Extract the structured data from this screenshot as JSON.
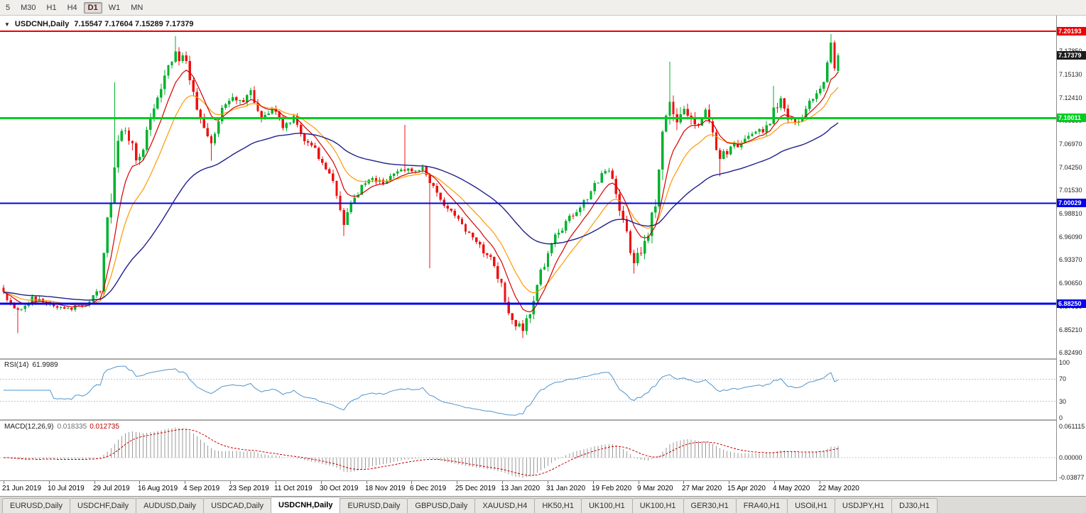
{
  "toolbar": {
    "timeframes": [
      {
        "label": "5",
        "active": false
      },
      {
        "label": "M30",
        "active": false
      },
      {
        "label": "H1",
        "active": false
      },
      {
        "label": "H4",
        "active": false
      },
      {
        "label": "D1",
        "active": true
      },
      {
        "label": "W1",
        "active": false
      },
      {
        "label": "MN",
        "active": false
      }
    ]
  },
  "chart": {
    "marker_icon": "▼",
    "title": "USDCNH,Daily",
    "ohlc": "7.15547 7.17604 7.15289 7.17379",
    "current_price": "7.17379",
    "axis_ticks": [
      "7.17850",
      "7.15130",
      "7.12410",
      "7.09690",
      "7.06970",
      "7.04250",
      "7.01530",
      "6.98810",
      "6.96090",
      "6.93370",
      "6.90650",
      "6.87930",
      "6.85210",
      "6.82490"
    ],
    "hlines": [
      {
        "price": "7.20193",
        "value": 7.20193,
        "color": "#EE0000",
        "width": 2
      },
      {
        "price": "7.10011",
        "value": 7.10011,
        "color": "#00CC22",
        "width": 3
      },
      {
        "price": "7.00029",
        "value": 7.00029,
        "color": "#0000EE",
        "width": 2
      },
      {
        "price": "6.88250",
        "value": 6.8825,
        "color": "#0000EE",
        "width": 3
      }
    ]
  },
  "rsi": {
    "label": "RSI(14)",
    "value": "61.9989",
    "levels": [
      "100",
      "70",
      "30",
      "0"
    ]
  },
  "macd": {
    "label": "MACD(12,26,9)",
    "value_main": "0.018335",
    "value_signal": "0.012735",
    "axis": [
      "0.061115",
      "0.00000",
      "-0.03877"
    ]
  },
  "dates": [
    "21 Jun 2019",
    "10 Jul 2019",
    "29 Jul 2019",
    "16 Aug 2019",
    "4 Sep 2019",
    "23 Sep 2019",
    "11 Oct 2019",
    "30 Oct 2019",
    "18 Nov 2019",
    "6 Dec 2019",
    "25 Dec 2019",
    "13 Jan 2020",
    "31 Jan 2020",
    "19 Feb 2020",
    "9 Mar 2020",
    "27 Mar 2020",
    "15 Apr 2020",
    "4 May 2020",
    "22 May 2020"
  ],
  "tabs": {
    "active_index": 4,
    "items": [
      "EURUSD,Daily",
      "USDCHF,Daily",
      "AUDUSD,Daily",
      "USDCAD,Daily",
      "USDCNH,Daily",
      "EURUSD,Daily",
      "GBPUSD,Daily",
      "XAUUSD,H4",
      "HK50,H1",
      "UK100,H1",
      "UK100,H1",
      "GER30,H1",
      "FRA40,H1",
      "USOil,H1",
      "USDJPY,H1",
      "DJ30,H1"
    ]
  },
  "colors": {
    "candle_up": "#00B22D",
    "candle_down": "#EE1111",
    "rsi_line": "#4F94CD",
    "macd_hist": "#9A9A9A",
    "macd_signal": "#CC0000",
    "current_badge": "#1C1C1C"
  },
  "chart_data": {
    "type": "candlestick",
    "symbol": "USDCNH",
    "timeframe": "Daily",
    "candle_count": 234,
    "price_axis_range": [
      6.8249,
      7.2202
    ],
    "last_candle": {
      "o": 7.15547,
      "h": 7.17604,
      "l": 7.15289,
      "c": 7.17379
    },
    "horizontal_levels": [
      7.20193,
      7.10011,
      7.00029,
      6.8825
    ],
    "indicators": {
      "moving_averages": [
        {
          "period": 8,
          "color": "#D40000"
        },
        {
          "period": 16,
          "color": "#FF9900"
        },
        {
          "period": 50,
          "color": "#20208C"
        }
      ],
      "rsi": {
        "period": 14,
        "current": 61.9989
      },
      "macd": {
        "fast": 12,
        "slow": 26,
        "signal": 9,
        "current_main": 0.018335,
        "current_signal": 0.012735
      }
    },
    "close_anchors": [
      [
        0,
        6.895,
        0.006
      ],
      [
        4,
        6.872,
        0.008
      ],
      [
        8,
        6.888,
        0.006
      ],
      [
        13,
        6.882,
        0.005
      ],
      [
        18,
        6.876,
        0.005
      ],
      [
        24,
        6.884,
        0.005
      ],
      [
        27,
        6.9,
        0.01
      ],
      [
        29,
        6.975,
        0.02
      ],
      [
        31,
        7.045,
        0.022
      ],
      [
        33,
        7.085,
        0.02
      ],
      [
        35,
        7.075,
        0.018
      ],
      [
        37,
        7.055,
        0.015
      ],
      [
        39,
        7.065,
        0.014
      ],
      [
        42,
        7.11,
        0.015
      ],
      [
        45,
        7.15,
        0.014
      ],
      [
        48,
        7.175,
        0.012
      ],
      [
        51,
        7.168,
        0.012
      ],
      [
        53,
        7.125,
        0.012
      ],
      [
        56,
        7.085,
        0.012
      ],
      [
        58,
        7.068,
        0.01
      ],
      [
        60,
        7.1,
        0.01
      ],
      [
        63,
        7.122,
        0.009
      ],
      [
        66,
        7.118,
        0.01
      ],
      [
        69,
        7.128,
        0.01
      ],
      [
        72,
        7.102,
        0.008
      ],
      [
        75,
        7.112,
        0.008
      ],
      [
        78,
        7.092,
        0.008
      ],
      [
        81,
        7.1,
        0.008
      ],
      [
        84,
        7.075,
        0.008
      ],
      [
        87,
        7.062,
        0.008
      ],
      [
        90,
        7.042,
        0.008
      ],
      [
        93,
        7.012,
        0.01
      ],
      [
        95,
        6.978,
        0.012
      ],
      [
        97,
        6.998,
        0.01
      ],
      [
        100,
        7.018,
        0.008
      ],
      [
        103,
        7.03,
        0.006
      ],
      [
        106,
        7.024,
        0.006
      ],
      [
        109,
        7.038,
        0.006
      ],
      [
        112,
        7.042,
        0.008
      ],
      [
        114,
        7.036,
        0.006
      ],
      [
        117,
        7.042,
        0.006
      ],
      [
        119,
        7.028,
        0.01
      ],
      [
        122,
        7.004,
        0.008
      ],
      [
        125,
        6.992,
        0.006
      ],
      [
        128,
        6.974,
        0.006
      ],
      [
        131,
        6.962,
        0.007
      ],
      [
        134,
        6.944,
        0.008
      ],
      [
        137,
        6.93,
        0.01
      ],
      [
        139,
        6.902,
        0.012
      ],
      [
        141,
        6.874,
        0.012
      ],
      [
        143,
        6.86,
        0.01
      ],
      [
        145,
        6.853,
        0.01
      ],
      [
        147,
        6.872,
        0.012
      ],
      [
        149,
        6.906,
        0.012
      ],
      [
        151,
        6.93,
        0.01
      ],
      [
        153,
        6.955,
        0.01
      ],
      [
        156,
        6.972,
        0.008
      ],
      [
        159,
        6.988,
        0.008
      ],
      [
        162,
        7.002,
        0.008
      ],
      [
        165,
        7.02,
        0.008
      ],
      [
        168,
        7.042,
        0.009
      ],
      [
        170,
        7.032,
        0.01
      ],
      [
        172,
        6.995,
        0.012
      ],
      [
        174,
        6.963,
        0.012
      ],
      [
        176,
        6.933,
        0.012
      ],
      [
        178,
        6.947,
        0.013
      ],
      [
        180,
        6.963,
        0.015
      ],
      [
        182,
        7.005,
        0.02
      ],
      [
        184,
        7.075,
        0.024
      ],
      [
        186,
        7.112,
        0.024
      ],
      [
        188,
        7.088,
        0.02
      ],
      [
        190,
        7.108,
        0.016
      ],
      [
        192,
        7.098,
        0.014
      ],
      [
        194,
        7.088,
        0.012
      ],
      [
        196,
        7.106,
        0.012
      ],
      [
        198,
        7.082,
        0.012
      ],
      [
        200,
        7.054,
        0.012
      ],
      [
        202,
        7.062,
        0.01
      ],
      [
        204,
        7.068,
        0.009
      ],
      [
        206,
        7.072,
        0.008
      ],
      [
        208,
        7.078,
        0.008
      ],
      [
        210,
        7.088,
        0.008
      ],
      [
        212,
        7.082,
        0.009
      ],
      [
        215,
        7.106,
        0.013
      ],
      [
        217,
        7.118,
        0.011
      ],
      [
        219,
        7.102,
        0.009
      ],
      [
        221,
        7.094,
        0.008
      ],
      [
        223,
        7.102,
        0.008
      ],
      [
        225,
        7.118,
        0.008
      ],
      [
        227,
        7.128,
        0.008
      ],
      [
        229,
        7.14,
        0.01
      ],
      [
        231,
        7.185,
        0.01
      ],
      [
        232,
        7.156,
        0.008
      ],
      [
        233,
        7.17379,
        0.002
      ]
    ],
    "spikes": [
      [
        4,
        "l",
        6.848
      ],
      [
        31,
        "h",
        7.142
      ],
      [
        48,
        "h",
        7.196
      ],
      [
        58,
        "l",
        7.05
      ],
      [
        95,
        "l",
        6.962
      ],
      [
        112,
        "h",
        7.092
      ],
      [
        119,
        "l",
        6.924
      ],
      [
        145,
        "l",
        6.842
      ],
      [
        176,
        "l",
        6.918
      ],
      [
        186,
        "h",
        7.166
      ],
      [
        200,
        "l",
        7.032
      ],
      [
        215,
        "h",
        7.138
      ],
      [
        231,
        "h",
        7.1985
      ]
    ]
  }
}
